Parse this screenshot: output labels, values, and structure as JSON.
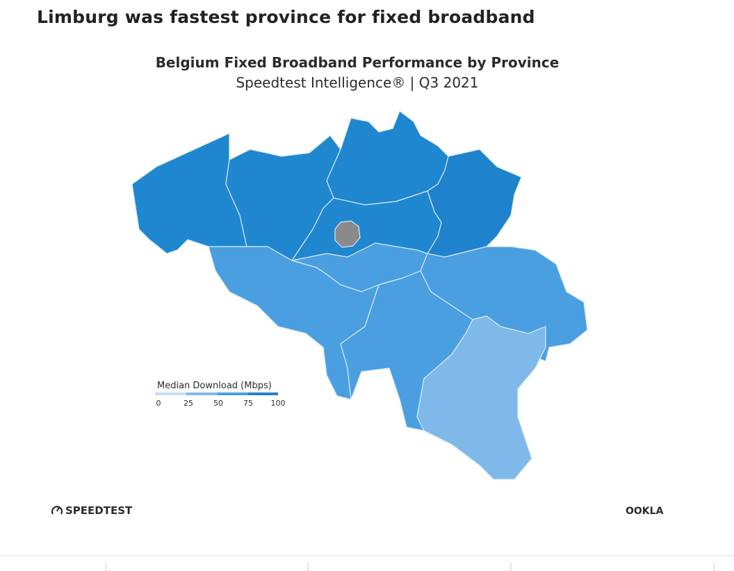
{
  "header": {
    "title": "Limburg was fastest province for fixed broadband"
  },
  "map": {
    "title": "Belgium Fixed Broadband Performance by Province",
    "subtitle": "Speedtest Intelligence® | Q3 2021",
    "legend": {
      "title": "Median Download (Mbps)",
      "ticks": [
        0,
        25,
        50,
        75,
        100
      ]
    }
  },
  "footer": {
    "left_logo": "SPEEDTEST",
    "right_logo": "OOKLA"
  }
}
